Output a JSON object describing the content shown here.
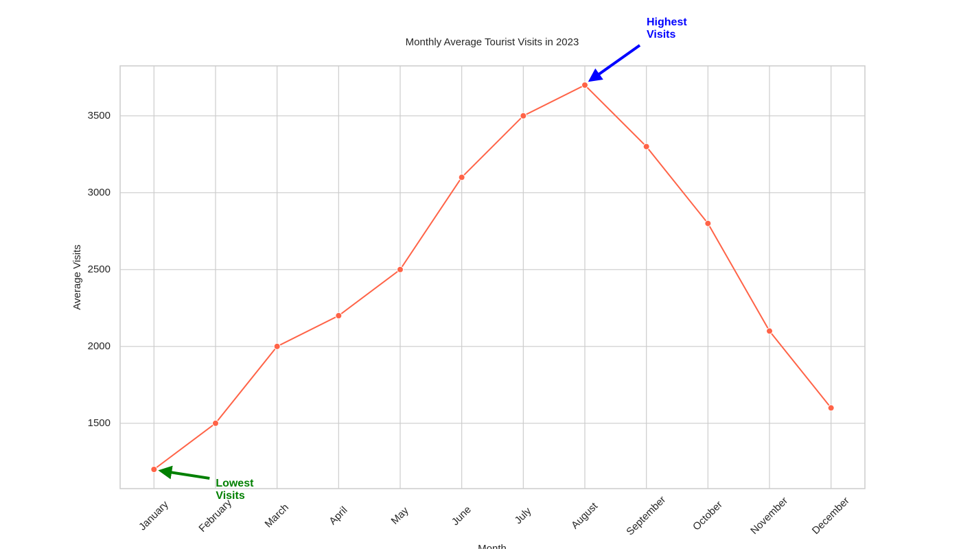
{
  "chart_data": {
    "type": "line",
    "title": "Monthly Average Tourist Visits in 2023",
    "x_label": "Month",
    "y_label": "Average Visits",
    "categories": [
      "January",
      "February",
      "March",
      "April",
      "May",
      "June",
      "July",
      "August",
      "September",
      "October",
      "November",
      "December"
    ],
    "series": [
      {
        "name": "Average Visits",
        "color": "#ff6347",
        "values": [
          1200,
          1500,
          2000,
          2200,
          2500,
          3100,
          3500,
          3700,
          3300,
          2800,
          2100,
          1600
        ]
      }
    ],
    "ylim": [
      1075,
      3825
    ],
    "yticks": [
      1500,
      2000,
      2500,
      3000,
      3500
    ],
    "grid": true,
    "annotations": [
      {
        "text": [
          "Highest",
          "Visits"
        ],
        "color": "#0000ff",
        "target": "max"
      },
      {
        "text": [
          "Lowest",
          "Visits"
        ],
        "color": "#008000",
        "target": "min"
      }
    ]
  }
}
